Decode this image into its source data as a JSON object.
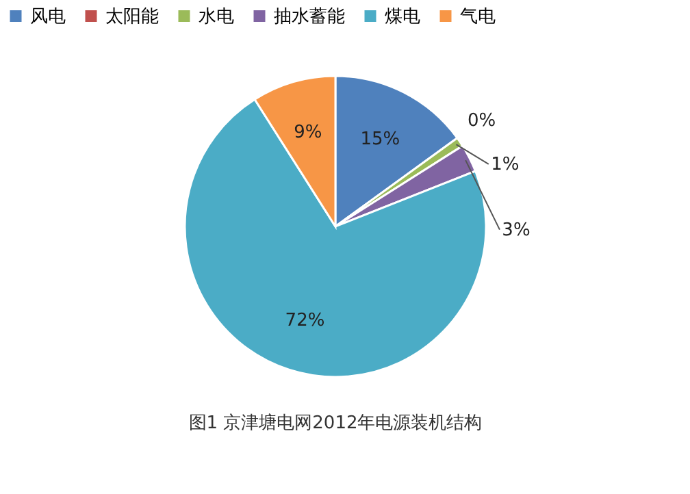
{
  "chart_data": {
    "type": "pie",
    "categories": [
      "风电",
      "太阳能",
      "水电",
      "抽水蓄能",
      "煤电",
      "气电"
    ],
    "values": [
      15,
      0,
      1,
      3,
      72,
      9
    ],
    "colors": [
      "#4f81bd",
      "#c0504d",
      "#9bbb59",
      "#8064a2",
      "#4bacc6",
      "#f79646"
    ],
    "value_labels": [
      "15%",
      "0%",
      "1%",
      "3%",
      "72%",
      "9%"
    ],
    "legend": "top",
    "annotations": [
      "图1 京津塘电网2012年电源装机结构"
    ]
  }
}
